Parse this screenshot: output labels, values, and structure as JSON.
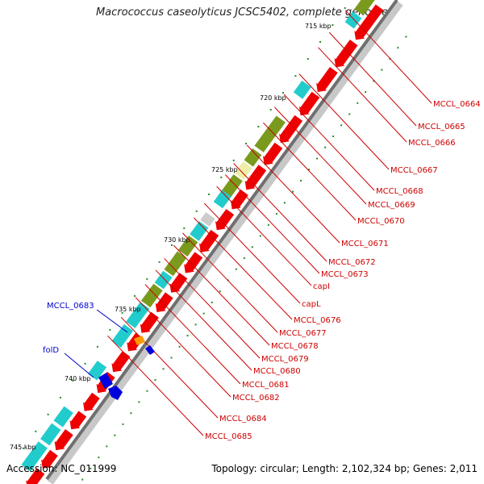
{
  "title": "Macrococcus caseolyticus JCSC5402, complete genome",
  "accession": "Accession: NC_011999",
  "topology": "Topology: circular; Length: 2,102,324 bp; Genes: 2,011",
  "colors": {
    "forward_cds": "#ee0000",
    "reverse_cds": "#0000dd",
    "olive": "#7a9a1e",
    "cyan": "#22cccc",
    "label_right": "#cc0000",
    "label_left": "#0000cc",
    "ticks": "#2a8a2a"
  },
  "kbp_ticks": [
    "715 kbp",
    "720 kbp",
    "725 kbp",
    "730 kbp",
    "735 kbp",
    "740 kbp",
    "745 kbp"
  ],
  "right_labels": [
    "MCCL_0664",
    "MCCL_0665",
    "MCCL_0666",
    "MCCL_0667",
    "MCCL_0668",
    "MCCL_0669",
    "MCCL_0670",
    "MCCL_0671",
    "MCCL_0672",
    "MCCL_0673",
    "capI",
    "capL",
    "MCCL_0676",
    "MCCL_0677",
    "MCCL_0678",
    "MCCL_0679",
    "MCCL_0680",
    "MCCL_0681",
    "MCCL_0682",
    "MCCL_0684",
    "MCCL_0685"
  ],
  "left_labels": [
    "MCCL_0683",
    "folD"
  ]
}
